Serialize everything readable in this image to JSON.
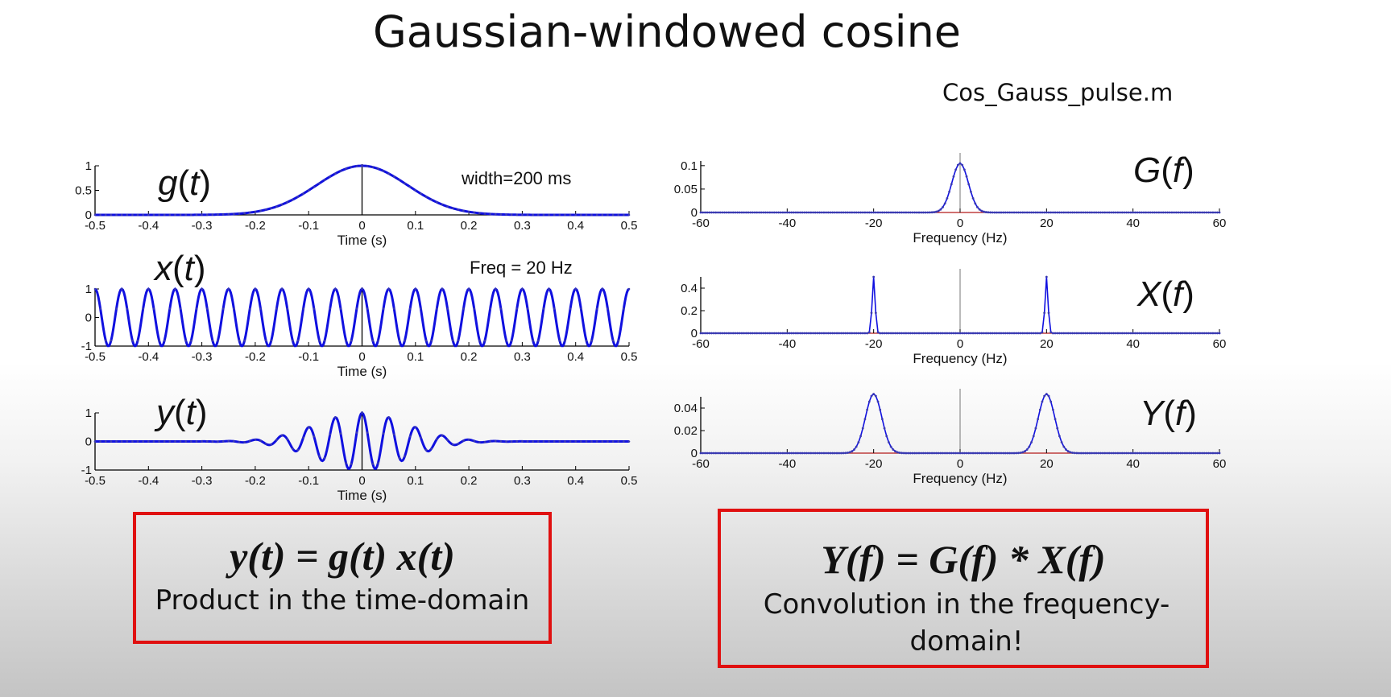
{
  "title": "Gaussian-windowed cosine",
  "filename": "Cos_Gauss_pulse.m",
  "colors": {
    "trace": "#1010e0",
    "marker": "#3a3ab0",
    "zero_line": "#e02020",
    "box_border": "#e01010"
  },
  "equations": {
    "time": {
      "formula": "y(t) = g(t) x(t)",
      "caption": "Product in the time-domain"
    },
    "freq": {
      "formula": "Y(f) = G(f) * X(f)",
      "caption": "Convolution in the frequency-domain!"
    }
  },
  "chart_data": [
    {
      "id": "g-time",
      "type": "line",
      "signal": "gaussian",
      "label": "g(t)",
      "annotation": "width=200 ms",
      "xlabel": "Time (s)",
      "xlim": [
        -0.5,
        0.5
      ],
      "xticks": [
        "-0.5",
        "-0.4",
        "-0.3",
        "-0.2",
        "-0.1",
        "0",
        "0.1",
        "0.2",
        "0.3",
        "0.4",
        "0.5"
      ],
      "ylim": [
        0,
        1
      ],
      "yticks": [
        "0",
        "0.5",
        "1"
      ],
      "sigma": 0.085,
      "amplitude": 1,
      "frequency": 0
    },
    {
      "id": "x-time",
      "type": "line",
      "signal": "cosine",
      "label": "x(t)",
      "annotation": "Freq = 20 Hz",
      "xlabel": "Time (s)",
      "xlim": [
        -0.5,
        0.5
      ],
      "xticks": [
        "-0.5",
        "-0.4",
        "-0.3",
        "-0.2",
        "-0.1",
        "0",
        "0.1",
        "0.2",
        "0.3",
        "0.4",
        "0.5"
      ],
      "ylim": [
        -1,
        1
      ],
      "yticks": [
        "-1",
        "0",
        "1"
      ],
      "frequency": 20,
      "amplitude": 1
    },
    {
      "id": "y-time",
      "type": "line",
      "signal": "windowed-cosine",
      "label": "y(t)",
      "annotation": "",
      "xlabel": "Time (s)",
      "xlim": [
        -0.5,
        0.5
      ],
      "xticks": [
        "-0.5",
        "-0.4",
        "-0.3",
        "-0.2",
        "-0.1",
        "0",
        "0.1",
        "0.2",
        "0.3",
        "0.4",
        "0.5"
      ],
      "ylim": [
        -1,
        1
      ],
      "yticks": [
        "-1",
        "0",
        "1"
      ],
      "frequency": 20,
      "sigma": 0.085,
      "amplitude": 1
    },
    {
      "id": "G-freq",
      "type": "line",
      "signal": "spectrum",
      "label": "G(f)",
      "annotation": "",
      "xlabel": "Frequency (Hz)",
      "xlim": [
        -60,
        60
      ],
      "xticks": [
        "-60",
        "-40",
        "-20",
        "0",
        "20",
        "40",
        "60"
      ],
      "ylim": [
        0,
        0.11
      ],
      "yticks": [
        "0",
        "0.05",
        "0.1"
      ],
      "peaks": [
        0
      ],
      "peak_value": 0.105,
      "peak_sigma": 1.9
    },
    {
      "id": "X-freq",
      "type": "line",
      "signal": "spectrum",
      "label": "X(f)",
      "annotation": "",
      "xlabel": "Frequency (Hz)",
      "xlim": [
        -60,
        60
      ],
      "xticks": [
        "-60",
        "-40",
        "-20",
        "0",
        "20",
        "40",
        "60"
      ],
      "ylim": [
        0,
        0.5
      ],
      "yticks": [
        "0",
        "0.2",
        "0.4"
      ],
      "peaks": [
        -20,
        20
      ],
      "peak_value": 0.5,
      "peak_sigma": 0.35
    },
    {
      "id": "Y-freq",
      "type": "line",
      "signal": "spectrum",
      "label": "Y(f)",
      "annotation": "",
      "xlabel": "Frequency (Hz)",
      "xlim": [
        -60,
        60
      ],
      "xticks": [
        "-60",
        "-40",
        "-20",
        "0",
        "20",
        "40",
        "60"
      ],
      "ylim": [
        0,
        0.05
      ],
      "yticks": [
        "0",
        "0.02",
        "0.04"
      ],
      "peaks": [
        -20,
        20
      ],
      "peak_value": 0.0525,
      "peak_sigma": 1.9
    }
  ]
}
